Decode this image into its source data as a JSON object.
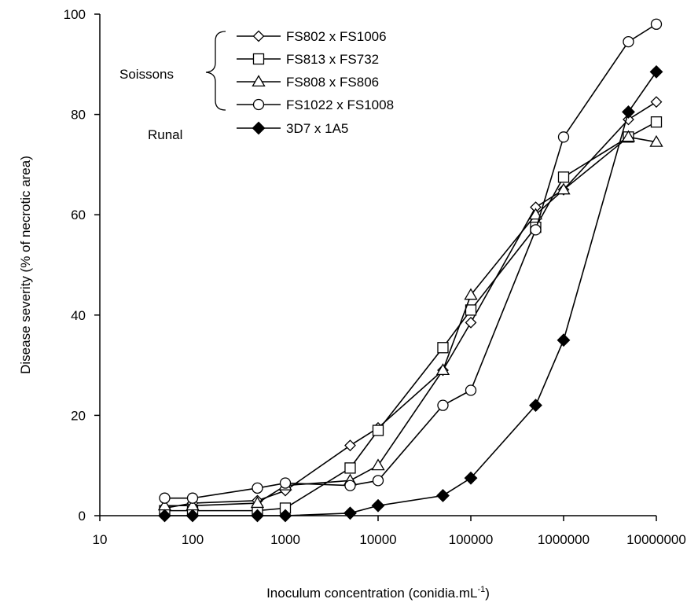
{
  "chart_data": {
    "type": "scatter",
    "xlabel": "Inoculum concentration (conidia.mL",
    "xlabel_superscript": "-1",
    "xlabel_close": ")",
    "ylabel": "Disease severity (% of necrotic area)",
    "xscale": "log",
    "xlim": [
      10,
      10000000
    ],
    "ylim": [
      0,
      100
    ],
    "x_ticks": [
      10,
      100,
      1000,
      10000,
      100000,
      1000000,
      10000000
    ],
    "x_tick_labels": [
      "10",
      "100",
      "1000",
      "10000",
      "100000",
      "1000000",
      "10000000"
    ],
    "y_ticks": [
      0,
      20,
      40,
      60,
      80,
      100
    ],
    "y_tick_labels": [
      "0",
      "20",
      "40",
      "60",
      "80",
      "100"
    ],
    "grid": false,
    "legend_position": "top-center",
    "legend_groups": [
      {
        "label": "Soissons",
        "series": [
          0,
          1,
          2,
          3
        ]
      },
      {
        "label": "Runal",
        "series": [
          4
        ]
      }
    ],
    "series": [
      {
        "name": "FS802 x FS1006",
        "marker": "diamond-open",
        "x": [
          50,
          100,
          500,
          1000,
          5000,
          10000,
          50000,
          100000,
          500000,
          1000000,
          5000000,
          10000000
        ],
        "y": [
          1.5,
          2.5,
          3,
          5,
          14,
          17.5,
          29,
          38.5,
          61.5,
          65,
          79,
          82.5
        ]
      },
      {
        "name": "FS813 x FS732",
        "marker": "square-open",
        "x": [
          50,
          100,
          500,
          1000,
          5000,
          10000,
          50000,
          100000,
          500000,
          1000000,
          5000000,
          10000000
        ],
        "y": [
          1,
          1,
          1,
          1.5,
          9.5,
          17,
          33.5,
          41,
          57.5,
          67.5,
          75.5,
          78.5
        ]
      },
      {
        "name": "FS808 x FS806",
        "marker": "triangle-open",
        "x": [
          50,
          100,
          500,
          1000,
          5000,
          10000,
          50000,
          100000,
          500000,
          1000000,
          5000000,
          10000000
        ],
        "y": [
          2,
          2,
          2.5,
          6,
          7,
          10,
          29,
          44,
          60,
          65,
          75.5,
          74.5
        ]
      },
      {
        "name": "FS1022 x FS1008",
        "marker": "circle-open",
        "x": [
          50,
          100,
          500,
          1000,
          5000,
          10000,
          50000,
          100000,
          500000,
          1000000,
          5000000,
          10000000
        ],
        "y": [
          3.5,
          3.5,
          5.5,
          6.5,
          6,
          7,
          22,
          25,
          57,
          75.5,
          94.5,
          98
        ]
      },
      {
        "name": "3D7 x 1A5",
        "marker": "diamond-filled",
        "x": [
          50,
          100,
          500,
          1000,
          5000,
          10000,
          50000,
          100000,
          500000,
          1000000,
          5000000,
          10000000
        ],
        "y": [
          0,
          0,
          0,
          0,
          0.5,
          2,
          4,
          7.5,
          22,
          35,
          80.5,
          88.5
        ]
      }
    ]
  }
}
